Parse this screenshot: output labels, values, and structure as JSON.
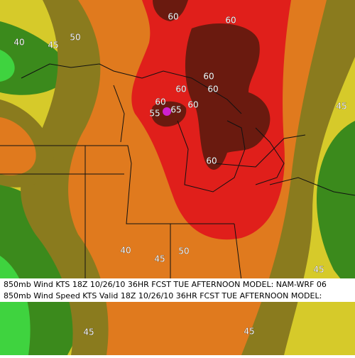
{
  "header": {
    "line1": "850mb Wind  KTS    18Z 10/26/10 36HR FCST  TUE AFTERNOON     MODEL: NAM-WRF 06",
    "line2": "850mb Wind Speed  KTS   Valid 18Z 10/26/10 36HR FCST  TUE AFTERNOON   MODEL:"
  },
  "contour_labels": [
    60,
    60,
    50,
    40,
    45,
    60,
    60,
    60,
    60,
    55,
    65,
    60,
    45,
    60,
    40,
    45,
    50,
    45,
    45,
    45
  ]
}
